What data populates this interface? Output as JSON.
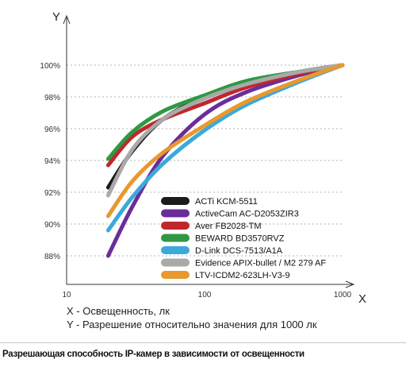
{
  "chart_data": {
    "type": "line",
    "xlabel": "X",
    "ylabel": "Y",
    "xscale": "log",
    "xlim": [
      10,
      1000
    ],
    "ylim": [
      87,
      100.6
    ],
    "x_ticks": [
      "10",
      "100",
      "1000"
    ],
    "y_ticks": [
      "100%",
      "98%",
      "96%",
      "94%",
      "92%",
      "90%",
      "88%"
    ],
    "y_tick_values": [
      100,
      98,
      96,
      94,
      92,
      90,
      88
    ],
    "grid": "horizontal dashed",
    "legend_position": "bottom-right",
    "x": [
      20,
      30,
      50,
      100,
      200,
      500,
      1000
    ],
    "series": [
      {
        "name": "ACTi KCM-5511",
        "color": "#1b1b1b",
        "values": [
          92.3,
          94.6,
          96.6,
          98.0,
          98.9,
          99.6,
          100
        ]
      },
      {
        "name": "ActiveCam AC-D2053ZIR3",
        "color": "#6a2d9a",
        "values": [
          88.0,
          91.1,
          94.3,
          96.9,
          98.3,
          99.4,
          100
        ]
      },
      {
        "name": "Aver FB2028-TM",
        "color": "#c0272d",
        "values": [
          93.7,
          95.5,
          96.6,
          97.6,
          98.6,
          99.5,
          100
        ]
      },
      {
        "name": "BEWARD BD3570RVZ",
        "color": "#2e9944",
        "values": [
          94.1,
          95.8,
          97.1,
          98.1,
          99.0,
          99.6,
          100
        ]
      },
      {
        "name": "D-Link DCS-7513/A1A",
        "color": "#3ba9d9",
        "values": [
          89.6,
          91.7,
          93.8,
          95.9,
          97.5,
          99.0,
          100
        ]
      },
      {
        "name": "Evidence APIX-bullet / M2 279 AF",
        "color": "#a9a9a9",
        "values": [
          91.8,
          94.7,
          96.6,
          97.9,
          98.8,
          99.6,
          100
        ]
      },
      {
        "name": "LTV-ICDM2-623LH-V3-9",
        "color": "#e9982d",
        "values": [
          90.5,
          92.7,
          94.5,
          96.2,
          97.7,
          99.1,
          100
        ]
      }
    ]
  },
  "notes": {
    "x": "X - Освещенность, лк",
    "y": "Y - Разрешение относительно значения для 1000 лк"
  },
  "caption": "Разрешающая способность IP-камер в зависимости от освещенности"
}
